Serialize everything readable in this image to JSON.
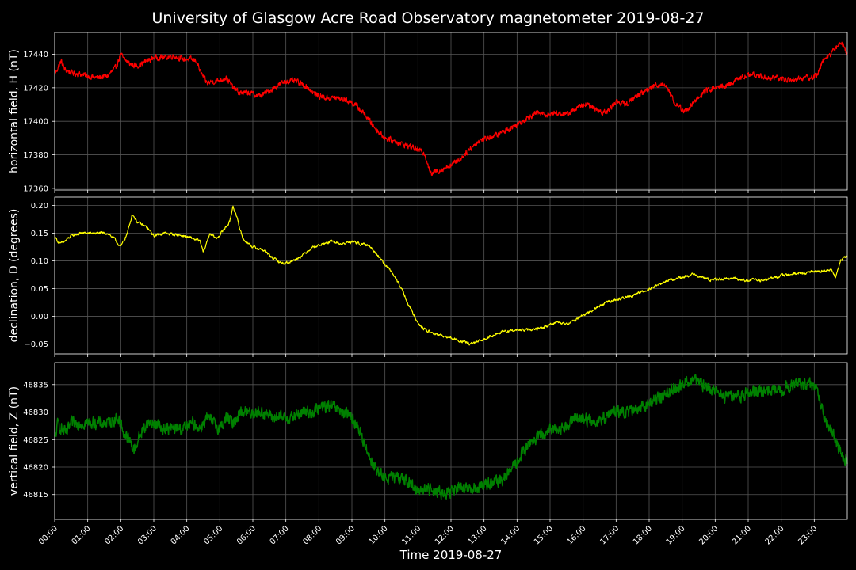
{
  "chart_data": {
    "type": "line",
    "title": "University of Glasgow Acre Road Observatory magnetometer 2019-08-27",
    "xlabel": "Time 2019-08-27",
    "x_unit": "hours",
    "xlim": [
      0,
      24
    ],
    "x_ticks": [
      "00:00",
      "01:00",
      "02:00",
      "03:00",
      "04:00",
      "05:00",
      "06:00",
      "07:00",
      "08:00",
      "09:00",
      "10:00",
      "11:00",
      "12:00",
      "13:00",
      "14:00",
      "15:00",
      "16:00",
      "17:00",
      "18:00",
      "19:00",
      "20:00",
      "21:00",
      "22:00",
      "23:00"
    ],
    "grid": true,
    "background": "#000000",
    "panels": [
      {
        "ylabel": "horizontal field, H (nT)",
        "color": "#ff0000",
        "ylim": [
          17359,
          17453
        ],
        "y_ticks": [
          "17360",
          "17380",
          "17400",
          "17420",
          "17440"
        ],
        "y_tick_values": [
          17360,
          17380,
          17400,
          17420,
          17440
        ],
        "noise": 1.5,
        "x": [
          0,
          0.1,
          0.2,
          0.3,
          0.5,
          0.8,
          1.0,
          1.3,
          1.6,
          1.85,
          2.0,
          2.1,
          2.3,
          2.5,
          2.7,
          3.0,
          3.3,
          3.6,
          3.9,
          4.1,
          4.3,
          4.4,
          4.6,
          4.9,
          5.2,
          5.4,
          5.6,
          5.9,
          6.2,
          6.5,
          6.8,
          7.0,
          7.3,
          7.6,
          7.9,
          8.2,
          8.5,
          8.8,
          9.1,
          9.4,
          9.7,
          10.0,
          10.3,
          10.6,
          10.9,
          11.2,
          11.4,
          11.5,
          11.7,
          12.0,
          12.3,
          12.6,
          12.9,
          13.3,
          13.7,
          14.0,
          14.3,
          14.6,
          14.9,
          15.2,
          15.5,
          15.8,
          16.1,
          16.4,
          16.7,
          17.0,
          17.3,
          17.6,
          17.9,
          18.2,
          18.5,
          18.8,
          19.1,
          19.4,
          19.7,
          20.0,
          20.3,
          20.6,
          20.9,
          21.2,
          21.5,
          21.8,
          22.1,
          22.4,
          22.7,
          22.9,
          23.1,
          23.3,
          23.5,
          23.7,
          23.85,
          24.0
        ],
        "y": [
          17428,
          17432,
          17436,
          17431,
          17429,
          17428,
          17427,
          17426,
          17427,
          17432,
          17440,
          17437,
          17434,
          17433,
          17435,
          17438,
          17438,
          17439,
          17437,
          17437,
          17436,
          17430,
          17423,
          17424,
          17426,
          17420,
          17417,
          17417,
          17415,
          17418,
          17422,
          17424,
          17424,
          17421,
          17416,
          17414,
          17414,
          17413,
          17410,
          17404,
          17396,
          17390,
          17388,
          17386,
          17384,
          17381,
          17368,
          17370,
          17371,
          17374,
          17378,
          17384,
          17389,
          17391,
          17395,
          17398,
          17402,
          17405,
          17404,
          17405,
          17404,
          17408,
          17410,
          17407,
          17405,
          17412,
          17410,
          17415,
          17418,
          17422,
          17422,
          17410,
          17406,
          17412,
          17418,
          17420,
          17421,
          17424,
          17427,
          17428,
          17426,
          17426,
          17425,
          17425,
          17426,
          17426,
          17428,
          17438,
          17440,
          17445,
          17447,
          17440
        ]
      },
      {
        "ylabel": "declination, D (degrees)",
        "color": "#ffff00",
        "ylim": [
          -0.068,
          0.215
        ],
        "y_ticks": [
          "0.20",
          "0.15",
          "0.10",
          "0.05",
          "0.00",
          "−0.05"
        ],
        "y_tick_values": [
          0.2,
          0.15,
          0.1,
          0.05,
          0.0,
          -0.05
        ],
        "noise": 0.0035,
        "x": [
          0,
          0.15,
          0.3,
          0.5,
          0.8,
          1.0,
          1.3,
          1.6,
          1.8,
          2.0,
          2.2,
          2.35,
          2.5,
          2.8,
          3.0,
          3.3,
          3.6,
          3.9,
          4.2,
          4.4,
          4.5,
          4.7,
          4.9,
          5.1,
          5.3,
          5.4,
          5.5,
          5.7,
          6.0,
          6.3,
          6.6,
          6.9,
          7.2,
          7.5,
          7.8,
          8.1,
          8.4,
          8.7,
          9.0,
          9.3,
          9.6,
          9.9,
          10.2,
          10.5,
          10.8,
          11.1,
          11.4,
          11.7,
          12.0,
          12.3,
          12.6,
          12.9,
          13.2,
          13.6,
          14.0,
          14.4,
          14.8,
          15.2,
          15.5,
          15.8,
          16.1,
          16.4,
          16.7,
          17.0,
          17.4,
          17.8,
          18.2,
          18.6,
          19.0,
          19.3,
          19.6,
          19.9,
          20.2,
          20.6,
          21.0,
          21.4,
          21.8,
          22.2,
          22.6,
          23.0,
          23.3,
          23.5,
          23.65,
          23.8,
          24.0
        ],
        "y": [
          0.145,
          0.13,
          0.135,
          0.145,
          0.15,
          0.15,
          0.15,
          0.15,
          0.14,
          0.125,
          0.15,
          0.185,
          0.17,
          0.16,
          0.145,
          0.15,
          0.148,
          0.145,
          0.14,
          0.135,
          0.115,
          0.15,
          0.14,
          0.155,
          0.17,
          0.2,
          0.18,
          0.14,
          0.125,
          0.12,
          0.105,
          0.095,
          0.1,
          0.11,
          0.125,
          0.13,
          0.135,
          0.13,
          0.135,
          0.13,
          0.125,
          0.1,
          0.08,
          0.05,
          0.01,
          -0.02,
          -0.03,
          -0.035,
          -0.04,
          -0.045,
          -0.05,
          -0.045,
          -0.035,
          -0.028,
          -0.025,
          -0.025,
          -0.02,
          -0.01,
          -0.015,
          -0.005,
          0.005,
          0.015,
          0.025,
          0.03,
          0.035,
          0.045,
          0.055,
          0.065,
          0.07,
          0.075,
          0.07,
          0.065,
          0.068,
          0.068,
          0.065,
          0.065,
          0.07,
          0.075,
          0.078,
          0.08,
          0.082,
          0.085,
          0.07,
          0.1,
          0.11
        ],
        "smooth": true
      },
      {
        "ylabel": "vertical field, Z (nT)",
        "color": "#008000",
        "ylim": [
          46810.5,
          46839
        ],
        "y_ticks": [
          "46835",
          "46830",
          "46825",
          "46820",
          "46815"
        ],
        "y_tick_values": [
          46835,
          46830,
          46825,
          46820,
          46815
        ],
        "noise": 1.0,
        "x": [
          0,
          0.1,
          0.2,
          0.35,
          0.5,
          0.8,
          1.0,
          1.3,
          1.6,
          1.9,
          2.0,
          2.1,
          2.25,
          2.4,
          2.6,
          2.8,
          3.0,
          3.3,
          3.6,
          3.9,
          4.2,
          4.4,
          4.6,
          4.8,
          5.0,
          5.2,
          5.4,
          5.6,
          5.8,
          6.0,
          6.3,
          6.6,
          6.9,
          7.2,
          7.5,
          7.8,
          8.1,
          8.4,
          8.7,
          9.0,
          9.2,
          9.4,
          9.6,
          9.8,
          10.0,
          10.3,
          10.6,
          10.9,
          11.2,
          11.5,
          11.8,
          12.1,
          12.4,
          12.7,
          13.0,
          13.3,
          13.6,
          13.9,
          14.2,
          14.5,
          14.8,
          15.1,
          15.4,
          15.7,
          16.0,
          16.3,
          16.6,
          16.9,
          17.2,
          17.5,
          17.8,
          18.1,
          18.4,
          18.7,
          19.0,
          19.3,
          19.6,
          19.9,
          20.2,
          20.5,
          20.8,
          21.1,
          21.4,
          21.7,
          22.0,
          22.3,
          22.6,
          22.9,
          23.1,
          23.3,
          23.5,
          23.7,
          23.85,
          24.0
        ],
        "y": [
          46825,
          46828,
          46827,
          46826,
          46828,
          46828,
          46828,
          46828,
          46828,
          46829,
          46828,
          46826,
          46825,
          46823,
          46826,
          46828,
          46828,
          46827,
          46827,
          46827,
          46828,
          46827,
          46829,
          46828,
          46827,
          46829,
          46828,
          46830,
          46830,
          46830,
          46830,
          46829,
          46829,
          46829,
          46830,
          46830,
          46831,
          46831,
          46830,
          46829,
          46827,
          46824,
          46821,
          46819,
          46818,
          46818,
          46818,
          46816,
          46816,
          46816,
          46815,
          46816,
          46816,
          46816,
          46817,
          46817,
          46818,
          46820,
          46823,
          46825,
          46826,
          46827,
          46827,
          46829,
          46829,
          46828,
          46829,
          46830,
          46830,
          46830,
          46831,
          46832,
          46833,
          46834,
          46835,
          46836,
          46835,
          46834,
          46833,
          46833,
          46833,
          46834,
          46834,
          46834,
          46834,
          46835,
          46835,
          46835,
          46834,
          46829,
          46827,
          46824,
          46822,
          46821
        ],
        "lw": 1.5
      }
    ]
  }
}
